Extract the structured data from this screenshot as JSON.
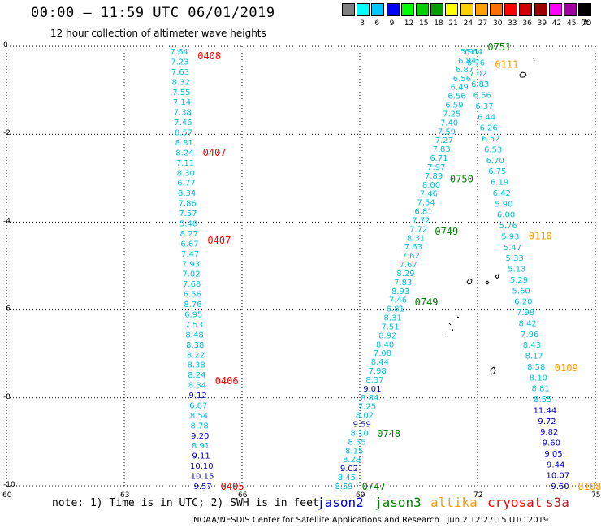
{
  "header": {
    "title": "00:00 – 11:59 UTC 06/01/2019",
    "subtitle": "12 hour collection of altimeter wave heights"
  },
  "legend": {
    "unit": "(ft)",
    "items": [
      {
        "label": "",
        "color": "#808080"
      },
      {
        "label": "3",
        "color": "#00ffff"
      },
      {
        "label": "6",
        "color": "#00c8ff"
      },
      {
        "label": "9",
        "color": "#0000ff"
      },
      {
        "label": "12",
        "color": "#00ff00"
      },
      {
        "label": "15",
        "color": "#00d000"
      },
      {
        "label": "18",
        "color": "#00a000"
      },
      {
        "label": "21",
        "color": "#ffff00"
      },
      {
        "label": "24",
        "color": "#ffd000"
      },
      {
        "label": "27",
        "color": "#ffa000"
      },
      {
        "label": "30",
        "color": "#ff7000"
      },
      {
        "label": "33",
        "color": "#ff0000"
      },
      {
        "label": "36",
        "color": "#d00000"
      },
      {
        "label": "39",
        "color": "#a00000"
      },
      {
        "label": "42",
        "color": "#ff00ff"
      },
      {
        "label": "45",
        "color": "#a000a0"
      },
      {
        "label": "70",
        "color": "#000000"
      }
    ]
  },
  "axes": {
    "lat_labels": [
      "0",
      "-2",
      "-4",
      "-6",
      "-8",
      "-10"
    ],
    "lon_labels": [
      "60",
      "63",
      "66",
      "69",
      "72",
      "75"
    ],
    "lat_values": [
      0,
      -2,
      -4,
      -6,
      -8,
      -10
    ],
    "lon_values": [
      60,
      63,
      66,
      69,
      72,
      75
    ]
  },
  "colors": {
    "jason2": "#0000cc",
    "jason3": "#008000",
    "altika": "#ff9900",
    "cryosat": "#ff0000",
    "s3a": "#a52a2a",
    "cyan": "#00bfdf"
  },
  "tracks": [
    {
      "satellite": "cryosat",
      "labels": [
        {
          "text": "0408",
          "lat": -0.2
        },
        {
          "text": "0407",
          "lat": -2.4
        },
        {
          "text": "0407",
          "lat": -4.4
        },
        {
          "text": "0406",
          "lat": -7.6
        },
        {
          "text": "0405",
          "lat": -10.0
        }
      ],
      "lon_top": 64.4,
      "lon_bottom": 65.0,
      "values": [
        "7.64",
        "7.23",
        "7.63",
        "8.32",
        "7.55",
        "7.14",
        "7.38",
        "7.46",
        "8.57",
        "8.81",
        "8.24",
        "7.11",
        "8.30",
        "6.77",
        "8.34",
        "7.86",
        "7.57",
        "5.48",
        "8.27",
        "6.67",
        "7.47",
        "7.93",
        "7.02",
        "7.68",
        "6.56",
        "8.76",
        "6.95",
        "7.53",
        "8.48",
        "8.38",
        "8.22",
        "8.38",
        "8.24",
        "8.34",
        "9.12",
        "6.67",
        "8.54",
        "8.78",
        "9.20",
        "8.91",
        "9.11",
        "10.10",
        "10.15",
        "9.57"
      ]
    },
    {
      "satellite": "jason3",
      "labels": [
        {
          "text": "0751",
          "lat": 0.0
        },
        {
          "text": "0750",
          "lat": -3.0
        },
        {
          "text": "0749",
          "lat": -4.2
        },
        {
          "text": "0749",
          "lat": -5.8
        },
        {
          "text": "0748",
          "lat": -8.8
        },
        {
          "text": "0747",
          "lat": -10.0
        }
      ],
      "lon_top": 71.8,
      "lon_bottom": 68.6,
      "values": [
        "5.91",
        "6.84",
        "6.87",
        "6.56",
        "6.49",
        "6.56",
        "6.59",
        "7.25",
        "7.40",
        "7.59",
        "7.27",
        "7.83",
        "6.71",
        "7.97",
        "7.89",
        "8.00",
        "7.46",
        "7.54",
        "6.81",
        "7.72",
        "7.72",
        "8.31",
        "7.63",
        "7.62",
        "7.67",
        "8.29",
        "7.83",
        "8.93",
        "7.46",
        "6.81",
        "8.31",
        "7.51",
        "8.92",
        "8.40",
        "7.08",
        "8.44",
        "7.98",
        "8.37",
        "9.01",
        "8.84",
        "7.25",
        "8.02",
        "9.59",
        "8.10",
        "8.55",
        "8.15",
        "8.28",
        "9.02",
        "8.45",
        "8.59"
      ]
    },
    {
      "satellite": "altika",
      "labels": [
        {
          "text": "0111",
          "lat": -0.4
        },
        {
          "text": "0110",
          "lat": -4.3
        },
        {
          "text": "0109",
          "lat": -7.3
        },
        {
          "text": "0108",
          "lat": -10.0
        }
      ],
      "lon_top": 71.9,
      "lon_bottom": 74.1,
      "values": [
        "6.64",
        "6.76",
        "7.02",
        "6.83",
        "6.56",
        "6.37",
        "6.44",
        "6.26",
        "6.52",
        "6.53",
        "6.70",
        "6.75",
        "6.19",
        "6.42",
        "5.90",
        "6.00",
        "5.76",
        "5.93",
        "5.47",
        "5.33",
        "5.13",
        "5.29",
        "5.60",
        "6.20",
        "7.98",
        "8.42",
        "7.96",
        "8.43",
        "8.17",
        "8.58",
        "8.10",
        "8.81",
        "8.55",
        "11.44",
        "9.72",
        "9.82",
        "9.60",
        "9.05",
        "9.44",
        "10.07",
        "9.60"
      ]
    }
  ],
  "legend_bar": {
    "note": "note: 1) Time is in UTC; 2) SWH is in feet",
    "jason2": "jason2",
    "jason3": "jason3",
    "altika": "altika",
    "cryosat": "cryosat",
    "s3a": "s3a"
  },
  "footer": {
    "credit": "NOAA/NESDIS Center for Satellite Applications and Research",
    "timestamp": "Jun  2 12:27:15 UTC 2019"
  }
}
